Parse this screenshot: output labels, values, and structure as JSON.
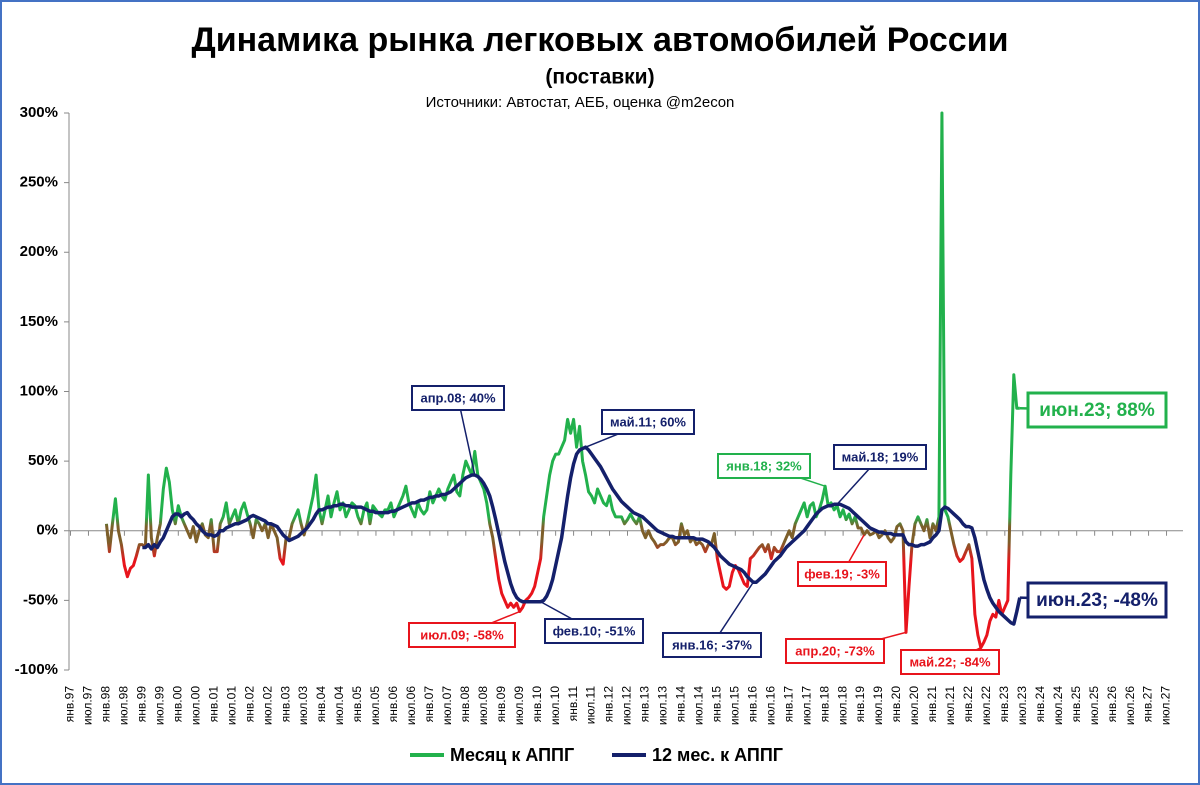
{
  "chart_data": {
    "type": "line",
    "title": "Динамика рынка легковых автомобилей России",
    "subtitle": "(поставки)",
    "source": "Источники: Автостат, АЕБ, оценка @m2econ",
    "categories": [
      "янв.97",
      null,
      null,
      null,
      null,
      null,
      "июл.97",
      null,
      null,
      null,
      null,
      null,
      "янв.98",
      null,
      null,
      null,
      null,
      null,
      "июл.98",
      null,
      null,
      null,
      null,
      null,
      "янв.99",
      null,
      null,
      null,
      null,
      null,
      "июл.99",
      null,
      null,
      null,
      null,
      null,
      "янв.00",
      null,
      null,
      null,
      null,
      null,
      "июл.00",
      null,
      null,
      null,
      null,
      null,
      "янв.01",
      null,
      null,
      null,
      null,
      null,
      "июл.01",
      null,
      null,
      null,
      null,
      null,
      "янв.02",
      null,
      null,
      null,
      null,
      null,
      "июл.02",
      null,
      null,
      null,
      null,
      null,
      "янв.03",
      null,
      null,
      null,
      null,
      null,
      "июл.03",
      null,
      null,
      null,
      null,
      null,
      "янв.04",
      null,
      null,
      null,
      null,
      null,
      "июл.04",
      null,
      null,
      null,
      null,
      null,
      "янв.05",
      null,
      null,
      null,
      null,
      null,
      "июл.05",
      null,
      null,
      null,
      null,
      null,
      "янв.06",
      null,
      null,
      null,
      null,
      null,
      "июл.06",
      null,
      null,
      null,
      null,
      null,
      "янв.07",
      null,
      null,
      null,
      null,
      null,
      "июл.07",
      null,
      null,
      null,
      null,
      null,
      "янв.08",
      null,
      null,
      null,
      null,
      null,
      "июл.08",
      null,
      null,
      null,
      null,
      null,
      "янв.09",
      null,
      null,
      null,
      null,
      null,
      "июл.09",
      null,
      null,
      null,
      null,
      null,
      "янв.10",
      null,
      null,
      null,
      null,
      null,
      "июл.10",
      null,
      null,
      null,
      null,
      null,
      "янв.11",
      null,
      null,
      null,
      null,
      null,
      "июл.11",
      null,
      null,
      null,
      null,
      null,
      "янв.12",
      null,
      null,
      null,
      null,
      null,
      "июл.12",
      null,
      null,
      null,
      null,
      null,
      "янв.13",
      null,
      null,
      null,
      null,
      null,
      "июл.13",
      null,
      null,
      null,
      null,
      null,
      "янв.14",
      null,
      null,
      null,
      null,
      null,
      "июл.14",
      null,
      null,
      null,
      null,
      null,
      "янв.15",
      null,
      null,
      null,
      null,
      null,
      "июл.15",
      null,
      null,
      null,
      null,
      null,
      "янв.16",
      null,
      null,
      null,
      null,
      null,
      "июл.16",
      null,
      null,
      null,
      null,
      null,
      "янв.17",
      null,
      null,
      null,
      null,
      null,
      "июл.17",
      null,
      null,
      null,
      null,
      null,
      "янв.18",
      null,
      null,
      null,
      null,
      null,
      "июл.18",
      null,
      null,
      null,
      null,
      null,
      "янв.19",
      null,
      null,
      null,
      null,
      null,
      "июл.19",
      null,
      null,
      null,
      null,
      null,
      "янв.20",
      null,
      null,
      null,
      null,
      null,
      "июл.20",
      null,
      null,
      null,
      null,
      null,
      "янв.21",
      null,
      null,
      null,
      null,
      null,
      "июл.21",
      null,
      null,
      null,
      null,
      null,
      "янв.22",
      null,
      null,
      null,
      null,
      null,
      "июл.22",
      null,
      null,
      null,
      null,
      null,
      "янв.23",
      null,
      null,
      null,
      null,
      null,
      "июл.23",
      null,
      null,
      null,
      null,
      null,
      "янв.24",
      null,
      null,
      null,
      null,
      null,
      "июл.24",
      null,
      null,
      null,
      null,
      null,
      "янв.25",
      null,
      null,
      null,
      null,
      null,
      "июл.25",
      null,
      null,
      null,
      null,
      null,
      "янв.26",
      null,
      null,
      null,
      null,
      null,
      "июл.26",
      null,
      null,
      null,
      null,
      null,
      "янв.27",
      null,
      null,
      null,
      null,
      null,
      "июл.27",
      null,
      null,
      null,
      null,
      null
    ],
    "series": [
      {
        "name": "Месяц к АППГ",
        "color": "#22b14c",
        "neutral_color": "#7d5f2a",
        "negative_color": "#e8141c",
        "values": [
          null,
          null,
          null,
          null,
          null,
          null,
          null,
          null,
          null,
          null,
          null,
          null,
          5,
          -15,
          5,
          23,
          0,
          -10,
          -25,
          -33,
          -27,
          -25,
          -18,
          -10,
          -10,
          -12,
          40,
          -5,
          -18,
          -5,
          5,
          30,
          45,
          35,
          15,
          5,
          18,
          10,
          5,
          0,
          -5,
          3,
          -8,
          0,
          5,
          -3,
          -5,
          8,
          -15,
          -15,
          5,
          10,
          20,
          5,
          10,
          15,
          5,
          15,
          20,
          12,
          5,
          -5,
          8,
          5,
          0,
          5,
          -5,
          5,
          0,
          -5,
          -20,
          -24,
          -5,
          -5,
          5,
          10,
          15,
          5,
          -3,
          5,
          15,
          25,
          40,
          15,
          5,
          15,
          25,
          10,
          20,
          28,
          15,
          20,
          10,
          15,
          20,
          18,
          10,
          5,
          15,
          20,
          5,
          18,
          15,
          12,
          10,
          15,
          15,
          20,
          10,
          15,
          20,
          25,
          32,
          20,
          15,
          10,
          20,
          15,
          12,
          15,
          28,
          20,
          25,
          30,
          25,
          22,
          30,
          35,
          40,
          28,
          25,
          40,
          50,
          45,
          40,
          57,
          40,
          35,
          30,
          20,
          5,
          -5,
          -20,
          -35,
          -45,
          -50,
          -55,
          -52,
          -55,
          -52,
          -58,
          -55,
          -50,
          -48,
          -45,
          -40,
          -30,
          -20,
          10,
          25,
          40,
          50,
          55,
          55,
          60,
          65,
          80,
          70,
          80,
          60,
          75,
          50,
          40,
          28,
          25,
          20,
          30,
          25,
          20,
          18,
          25,
          15,
          10,
          10,
          10,
          5,
          8,
          12,
          8,
          5,
          10,
          0,
          -5,
          0,
          -5,
          -8,
          -12,
          -10,
          -10,
          -8,
          -5,
          -5,
          -10,
          -8,
          5,
          -3,
          0,
          -8,
          -5,
          -10,
          -8,
          -10,
          -15,
          -10,
          -10,
          -2,
          -20,
          -30,
          -40,
          -42,
          -40,
          -30,
          -25,
          -28,
          -33,
          -38,
          -40,
          -20,
          -18,
          -15,
          -12,
          -10,
          -15,
          -10,
          -20,
          -12,
          -15,
          -15,
          -10,
          -5,
          0,
          -5,
          5,
          10,
          15,
          20,
          10,
          18,
          20,
          10,
          15,
          22,
          32,
          18,
          20,
          15,
          18,
          10,
          15,
          8,
          12,
          5,
          10,
          2,
          2,
          -3,
          0,
          -3,
          -2,
          0,
          -5,
          -3,
          0,
          -5,
          -8,
          -5,
          3,
          5,
          0,
          -73,
          -40,
          -10,
          5,
          10,
          5,
          0,
          8,
          -5,
          5,
          0,
          10,
          300,
          15,
          10,
          0,
          -10,
          -18,
          -22,
          -20,
          -15,
          -10,
          -20,
          -60,
          -75,
          -84,
          -80,
          -75,
          -65,
          -60,
          -62,
          -50,
          -60,
          -55,
          -50,
          40,
          112,
          88,
          88,
          null,
          null,
          null,
          null,
          null,
          null,
          null,
          null,
          null,
          null,
          null,
          null,
          null,
          null,
          null,
          null,
          null,
          null,
          null,
          null,
          null,
          null,
          null,
          null,
          null,
          null,
          null,
          null,
          null,
          null,
          null,
          null,
          null,
          null,
          null,
          null,
          null,
          null,
          null,
          null,
          null,
          null,
          null,
          null,
          null,
          null,
          null,
          null,
          null,
          null,
          null,
          null,
          null,
          null
        ]
      },
      {
        "name": "12 мес. к АППГ",
        "color": "#14206b",
        "values": [
          null,
          null,
          null,
          null,
          null,
          null,
          null,
          null,
          null,
          null,
          null,
          null,
          null,
          null,
          null,
          null,
          null,
          null,
          null,
          null,
          null,
          null,
          null,
          null,
          -12,
          -12,
          -10,
          -13,
          -10,
          -12,
          -8,
          -5,
          0,
          5,
          10,
          12,
          12,
          10,
          12,
          13,
          10,
          8,
          5,
          3,
          0,
          -2,
          -3,
          -3,
          -4,
          -3,
          0,
          0,
          2,
          3,
          4,
          5,
          5,
          6,
          7,
          8,
          10,
          11,
          10,
          9,
          8,
          7,
          5,
          5,
          4,
          3,
          0,
          -3,
          -5,
          -7,
          -6,
          -5,
          -4,
          -2,
          0,
          2,
          5,
          8,
          12,
          15,
          15,
          16,
          17,
          17,
          18,
          18,
          19,
          19,
          18,
          18,
          17,
          17,
          17,
          17,
          16,
          15,
          14,
          14,
          13,
          13,
          13,
          13,
          13,
          14,
          14,
          15,
          16,
          17,
          18,
          19,
          20,
          20,
          21,
          22,
          22,
          23,
          24,
          24,
          25,
          25,
          26,
          26,
          27,
          28,
          30,
          32,
          34,
          36,
          38,
          39,
          40,
          40,
          39,
          37,
          34,
          30,
          25,
          17,
          8,
          -2,
          -12,
          -22,
          -30,
          -38,
          -44,
          -48,
          -50,
          -51,
          -51,
          -51,
          -51,
          -51,
          -51,
          -51,
          -50,
          -47,
          -42,
          -35,
          -25,
          -15,
          -5,
          10,
          25,
          38,
          48,
          55,
          58,
          59,
          60,
          58,
          55,
          52,
          49,
          46,
          42,
          38,
          34,
          30,
          27,
          24,
          21,
          19,
          17,
          15,
          13,
          12,
          11,
          10,
          8,
          6,
          4,
          2,
          0,
          -1,
          -2,
          -3,
          -4,
          -4,
          -5,
          -5,
          -5,
          -5,
          -5,
          -5,
          -5,
          -6,
          -6,
          -6,
          -7,
          -8,
          -10,
          -12,
          -15,
          -18,
          -20,
          -22,
          -24,
          -25,
          -26,
          -27,
          -28,
          -30,
          -33,
          -35,
          -37,
          -37,
          -35,
          -33,
          -31,
          -28,
          -25,
          -22,
          -20,
          -18,
          -15,
          -12,
          -10,
          -8,
          -6,
          -4,
          -2,
          0,
          3,
          6,
          9,
          12,
          14,
          16,
          17,
          18,
          18,
          19,
          19,
          19,
          18,
          17,
          16,
          14,
          12,
          10,
          8,
          6,
          4,
          2,
          1,
          0,
          -1,
          -1,
          -2,
          -2,
          -2,
          -3,
          -3,
          -3,
          -3,
          -8,
          -10,
          -10,
          -11,
          -11,
          -10,
          -10,
          -9,
          -8,
          -5,
          -3,
          0,
          15,
          17,
          16,
          14,
          12,
          10,
          8,
          5,
          3,
          3,
          2,
          -5,
          -15,
          -25,
          -35,
          -42,
          -48,
          -52,
          -55,
          -58,
          -60,
          -62,
          -64,
          -66,
          -67,
          -58,
          -48,
          null,
          null,
          null,
          null,
          null,
          null,
          null,
          null,
          null,
          null,
          null,
          null,
          null,
          null,
          null,
          null,
          null,
          null,
          null,
          null,
          null,
          null,
          null,
          null,
          null,
          null,
          null,
          null,
          null,
          null,
          null,
          null,
          null,
          null,
          null,
          null,
          null,
          null,
          null,
          null,
          null,
          null,
          null,
          null,
          null,
          null,
          null,
          null,
          null,
          null,
          null,
          null,
          null,
          null
        ]
      }
    ],
    "ylim": [
      -100,
      300
    ],
    "yticks": [
      {
        "value": -100,
        "label": "-100%"
      },
      {
        "value": -50,
        "label": "-50%"
      },
      {
        "value": 0,
        "label": "0%"
      },
      {
        "value": 50,
        "label": "50%"
      },
      {
        "value": 100,
        "label": "100%"
      },
      {
        "value": 150,
        "label": "150%"
      },
      {
        "value": 200,
        "label": "200%"
      },
      {
        "value": 250,
        "label": "250%"
      },
      {
        "value": 300,
        "label": "300%"
      }
    ],
    "legend": "bottom",
    "annotations": [
      {
        "text": "апр.08; 40%",
        "color": "#14206b"
      },
      {
        "text": "май.11; 60%",
        "color": "#14206b"
      },
      {
        "text": "янв.18; 32%",
        "color": "#22b14c"
      },
      {
        "text": "май.18; 19%",
        "color": "#14206b"
      },
      {
        "text": "фев.19; -3%",
        "color": "#e8141c"
      },
      {
        "text": "июл.09; -58%",
        "color": "#e8141c"
      },
      {
        "text": "фев.10; -51%",
        "color": "#14206b"
      },
      {
        "text": "янв.16; -37%",
        "color": "#14206b"
      },
      {
        "text": "апр.20; -73%",
        "color": "#e8141c"
      },
      {
        "text": "май.22; -84%",
        "color": "#e8141c"
      },
      {
        "text": "июн.23; 88%",
        "color": "#22b14c"
      },
      {
        "text": "июн.23; -48%",
        "color": "#14206b"
      }
    ]
  }
}
